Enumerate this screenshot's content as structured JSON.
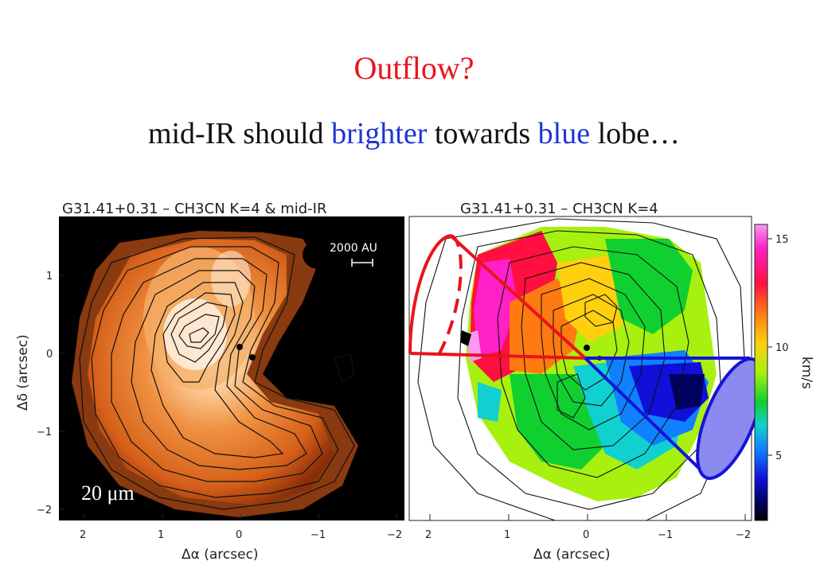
{
  "slide": {
    "title": "Outflow?",
    "subtitle_parts": [
      "mid-IR should ",
      "brighter",
      " towards ",
      "blue",
      " lobe…"
    ]
  },
  "left_panel": {
    "title": "G31.41+0.31 – CH3CN K=4 & mid-IR",
    "scale_bar_label": "2000 AU",
    "wavelength_label": "20 μm",
    "xlabel": "Δα (arcsec)",
    "ylabel": "Δδ (arcsec)",
    "x_ticks": [
      "2",
      "1",
      "0",
      "−1",
      "−2"
    ],
    "y_ticks": [
      "1",
      "0",
      "−1",
      "−2"
    ]
  },
  "right_panel": {
    "title": "G31.41+0.31 – CH3CN K=4",
    "xlabel": "Δα (arcsec)",
    "x_ticks": [
      "2",
      "1",
      "0",
      "−1",
      "−2"
    ],
    "colorbar_ticks": [
      "15",
      "10",
      "5"
    ],
    "colorbar_label": "km/s"
  },
  "colors": {
    "red_lobe": "#e8141c",
    "blue_lobe": "#1414d8",
    "blue_fill": "#8a8af0"
  }
}
